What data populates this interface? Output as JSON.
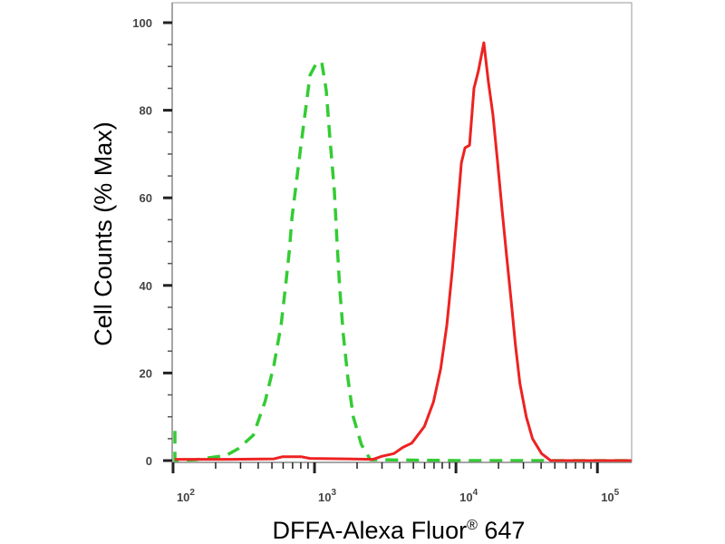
{
  "chart_data": {
    "type": "line",
    "title": "",
    "xlabel": "DFFA-Alexa Fluor® 647",
    "ylabel": "Cell Counts (% Max)",
    "xscale": "log",
    "xlim": [
      98.6,
      174600
    ],
    "ylim": [
      0,
      100
    ],
    "grid": false,
    "legend": "none",
    "x_ticks": [
      {
        "value": 100,
        "base": "10",
        "exp": "2"
      },
      {
        "value": 1000,
        "base": "10",
        "exp": "3"
      },
      {
        "value": 10000,
        "base": "10",
        "exp": "4"
      },
      {
        "value": 100000,
        "base": "10",
        "exp": "5"
      }
    ],
    "y_ticks": [
      0,
      20,
      40,
      60,
      80,
      100
    ],
    "y_ticks_labels": [
      "0",
      "20",
      "40",
      "60",
      "80",
      "100"
    ],
    "series": [
      {
        "style": "dashed",
        "color": "#33cc33",
        "x": [
          103,
          103,
          145,
          238,
          288,
          369,
          447,
          516,
          581,
          625,
          664,
          693,
          746,
          802,
          863,
          929,
          1030,
          1125,
          1211,
          1282,
          1380,
          1442,
          1507,
          1600,
          1722,
          1879,
          2143,
          2483,
          10000,
          174000
        ],
        "y": [
          6.8,
          0,
          0.2,
          1.2,
          2.7,
          5.8,
          13.5,
          21.7,
          31,
          40,
          48,
          55.5,
          63.8,
          72,
          80,
          88,
          90.7,
          91,
          84.5,
          74,
          61.7,
          50,
          39.5,
          28.6,
          18.8,
          10,
          3.7,
          0.2,
          0,
          0
        ]
      },
      {
        "style": "solid",
        "color": "#ee2222",
        "x": [
          103,
          248,
          516,
          598,
          802,
          929,
          1671,
          2594,
          3006,
          3639,
          4207,
          4875,
          5984,
          6934,
          7798,
          8630,
          9441,
          10139,
          10914,
          11588,
          12474,
          13397,
          14420,
          15740,
          16943,
          18239,
          19634,
          21135,
          22751,
          24491,
          26303,
          28314,
          31405,
          34754,
          40272,
          46666,
          174000
        ],
        "y": [
          0.3,
          0.3,
          0.4,
          0.9,
          0.9,
          0.5,
          0.4,
          0.3,
          1,
          1.6,
          3,
          4,
          7.8,
          13.4,
          21,
          31,
          43.7,
          55.5,
          68,
          71.4,
          72,
          85,
          89,
          95.4,
          86.5,
          79,
          68.5,
          57.5,
          47,
          36.8,
          26.5,
          17.6,
          10,
          5,
          1.6,
          0,
          0
        ]
      }
    ]
  }
}
